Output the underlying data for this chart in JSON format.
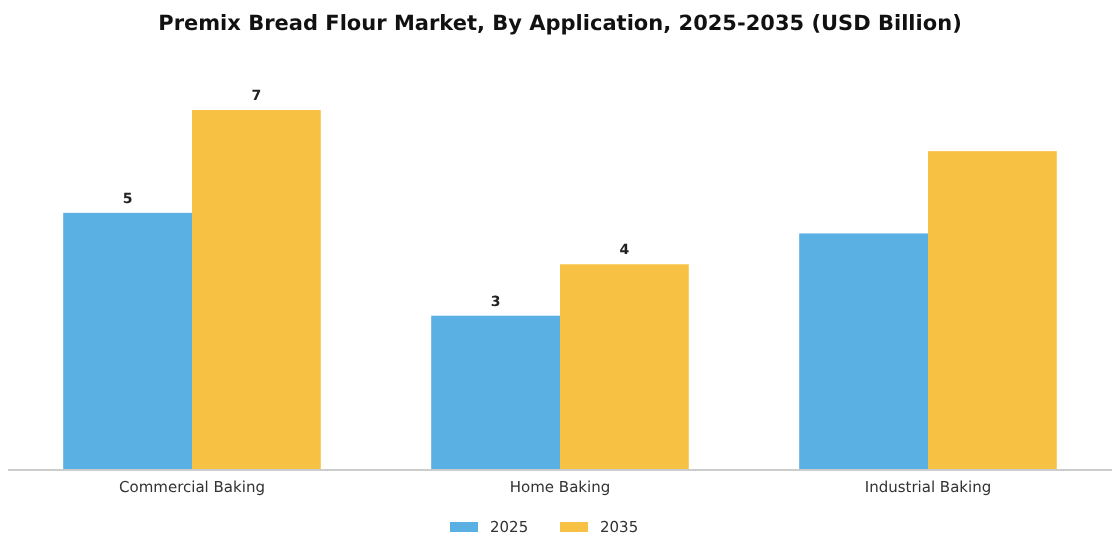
{
  "chart_data": {
    "type": "bar",
    "title": "Premix Bread Flour Market, By Application, 2025-2035 (USD Billion)",
    "categories": [
      "Commercial Baking",
      "Home Baking",
      "Industrial Baking"
    ],
    "series": [
      {
        "name": "2025",
        "color": "#5aafe3",
        "values": [
          5,
          3,
          4.6
        ],
        "value_labels": [
          "5",
          "3",
          null
        ]
      },
      {
        "name": "2035",
        "color": "#f7c244",
        "values": [
          7,
          4,
          6.2
        ],
        "value_labels": [
          "7",
          "4",
          null
        ]
      }
    ],
    "legend": "bottom"
  }
}
